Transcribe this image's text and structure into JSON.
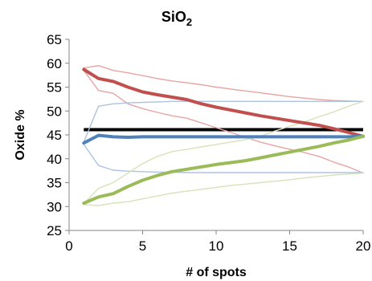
{
  "chart_data": {
    "type": "line",
    "title": "SiO",
    "title_subscript": "2",
    "xlabel": "# of spots",
    "ylabel": "Oxide %",
    "xlim": [
      0,
      20
    ],
    "ylim": [
      25,
      65
    ],
    "xticks": [
      0,
      5,
      10,
      15,
      20
    ],
    "yticks": [
      25,
      30,
      35,
      40,
      45,
      50,
      55,
      60,
      65
    ],
    "grid": false,
    "reference_line": {
      "y": 46.1,
      "color": "#000000"
    },
    "x": [
      1,
      2,
      3,
      4,
      5,
      6,
      7,
      8,
      9,
      10,
      11,
      12,
      13,
      14,
      15,
      16,
      17,
      18,
      19,
      20
    ],
    "series": [
      {
        "color": "#c0504d",
        "width": 4,
        "values": [
          58.7,
          56.8,
          56.2,
          55.0,
          54.0,
          53.4,
          52.9,
          52.4,
          51.5,
          50.8,
          50.2,
          49.6,
          49.0,
          48.5,
          48.0,
          47.5,
          47.0,
          46.3,
          45.5,
          44.7
        ]
      },
      {
        "color": "#4f81bd",
        "width": 4,
        "values": [
          43.3,
          44.9,
          44.6,
          44.5,
          44.6,
          44.6,
          44.6,
          44.6,
          44.6,
          44.6,
          44.6,
          44.6,
          44.6,
          44.6,
          44.6,
          44.6,
          44.6,
          44.6,
          44.6,
          44.7
        ]
      },
      {
        "color": "#9bbb59",
        "width": 4,
        "values": [
          30.7,
          32.0,
          32.7,
          34.2,
          35.5,
          36.5,
          37.3,
          37.8,
          38.3,
          38.8,
          39.2,
          39.6,
          40.2,
          40.8,
          41.4,
          42.0,
          42.6,
          43.3,
          43.9,
          44.7
        ]
      },
      {
        "color": "#e6a5a3",
        "width": 1.4,
        "values": [
          59.0,
          59.5,
          58.5,
          58.0,
          57.4,
          56.8,
          56.3,
          55.9,
          55.5,
          55.0,
          54.6,
          54.2,
          53.8,
          53.4,
          53.0,
          52.7,
          52.4,
          52.2,
          52.1,
          52.0
        ]
      },
      {
        "color": "#e6a5a3",
        "width": 1.4,
        "values": [
          58.5,
          54.3,
          53.7,
          51.5,
          50.5,
          49.7,
          49.0,
          48.5,
          47.5,
          46.5,
          45.5,
          44.5,
          43.5,
          42.7,
          42.0,
          41.3,
          40.5,
          39.3,
          38.3,
          37.0
        ]
      },
      {
        "color": "#adc3e0",
        "width": 1.4,
        "values": [
          43.5,
          51.0,
          51.5,
          51.7,
          51.8,
          51.9,
          52.0,
          52.0,
          52.0,
          52.0,
          52.0,
          52.0,
          52.0,
          52.0,
          52.0,
          52.0,
          52.0,
          52.0,
          52.0,
          52.0
        ]
      },
      {
        "color": "#adc3e0",
        "width": 1.4,
        "values": [
          43.0,
          38.6,
          37.6,
          37.4,
          37.3,
          37.2,
          37.2,
          37.1,
          37.1,
          37.1,
          37.1,
          37.1,
          37.1,
          37.1,
          37.1,
          37.1,
          37.1,
          37.1,
          37.1,
          37.1
        ]
      },
      {
        "color": "#d6e3b8",
        "width": 1.4,
        "values": [
          30.6,
          33.8,
          35.0,
          37.0,
          39.0,
          40.5,
          41.5,
          42.0,
          42.5,
          43.0,
          43.5,
          44.0,
          44.7,
          45.8,
          46.8,
          47.7,
          48.8,
          49.8,
          51.0,
          52.0
        ]
      },
      {
        "color": "#d6e3b8",
        "width": 1.4,
        "values": [
          30.4,
          30.2,
          30.7,
          31.0,
          31.6,
          32.2,
          32.8,
          33.2,
          33.6,
          34.0,
          34.4,
          34.7,
          35.0,
          35.3,
          35.6,
          36.0,
          36.3,
          36.6,
          36.8,
          37.0
        ]
      }
    ]
  }
}
